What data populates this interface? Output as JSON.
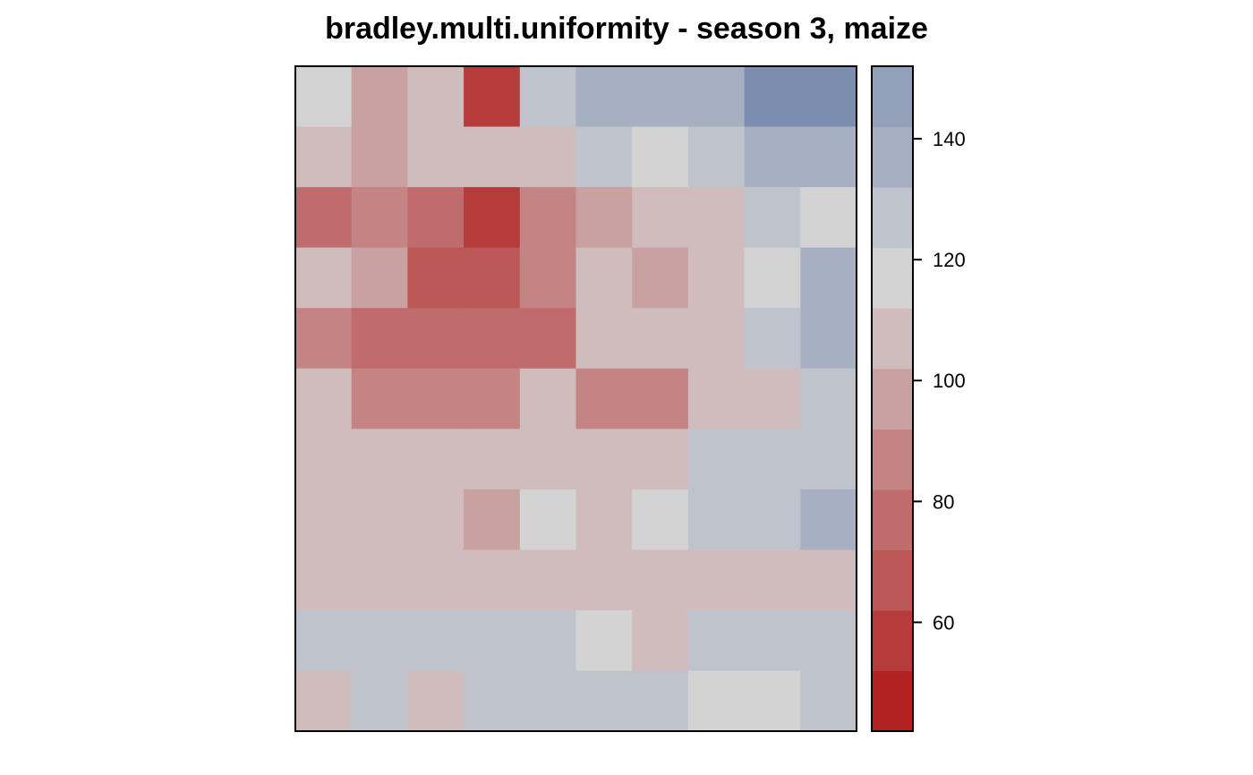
{
  "chart_data": {
    "type": "heatmap",
    "title": "bradley.multi.uniformity - season 3, maize",
    "xlabel": "",
    "ylabel": "",
    "n_rows": 11,
    "n_cols": 10,
    "values": [
      [
        108,
        85,
        100,
        44,
        118,
        126,
        126,
        126,
        145,
        145
      ],
      [
        100,
        85,
        100,
        100,
        100,
        118,
        108,
        112,
        126,
        126
      ],
      [
        64,
        72,
        64,
        48,
        75,
        85,
        92,
        92,
        112,
        108
      ],
      [
        92,
        85,
        58,
        58,
        75,
        92,
        85,
        92,
        108,
        126
      ],
      [
        80,
        66,
        66,
        66,
        66,
        92,
        92,
        100,
        118,
        126
      ],
      [
        92,
        72,
        72,
        72,
        92,
        80,
        80,
        100,
        100,
        118
      ],
      [
        100,
        100,
        100,
        92,
        92,
        100,
        100,
        112,
        118,
        118
      ],
      [
        92,
        92,
        100,
        85,
        108,
        100,
        108,
        112,
        112,
        126
      ],
      [
        100,
        100,
        92,
        100,
        100,
        100,
        100,
        100,
        100,
        100
      ],
      [
        112,
        118,
        112,
        112,
        112,
        108,
        100,
        112,
        112,
        112
      ],
      [
        92,
        112,
        100,
        112,
        112,
        112,
        112,
        108,
        108,
        118
      ]
    ],
    "colorbar": {
      "breaks": [
        42,
        52,
        62,
        72,
        82,
        92,
        102,
        112,
        122,
        132,
        142,
        152
      ],
      "colors": [
        "#B22222",
        "#B63C3C",
        "#BC5757",
        "#C06C6C",
        "#C48484",
        "#CAA1A1",
        "#D0BCBC",
        "#D3D3D3",
        "#BFC3CB",
        "#A6B0C2",
        "#92A0BA",
        "#7C8EB0",
        "#6A7FA9",
        "#4A6AA2"
      ],
      "range": [
        42,
        152
      ],
      "ticks": [
        60,
        80,
        100,
        120,
        140
      ],
      "tick_labels": [
        "60",
        "80",
        "100",
        "120",
        "140"
      ]
    },
    "grid": false,
    "legend_position": "right"
  }
}
